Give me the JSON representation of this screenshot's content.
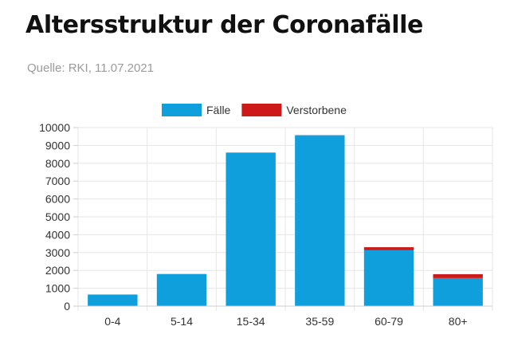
{
  "title": "Altersstruktur der Coronafälle",
  "source": "Quelle: RKI, 11.07.2021",
  "chart_data": {
    "type": "bar",
    "stacked": true,
    "categories": [
      "0-4",
      "5-14",
      "15-34",
      "35-59",
      "60-79",
      "80+"
    ],
    "series": [
      {
        "name": "Fälle",
        "color": "#0f9fdc",
        "values": [
          650,
          1800,
          8600,
          9550,
          3130,
          1570
        ]
      },
      {
        "name": "Verstorbene",
        "color": "#cc1a1a",
        "values": [
          0,
          0,
          0,
          20,
          170,
          220
        ]
      }
    ],
    "ylim": [
      0,
      10000
    ],
    "yticks": [
      0,
      1000,
      2000,
      3000,
      4000,
      5000,
      6000,
      7000,
      8000,
      9000,
      10000
    ],
    "grid": true,
    "legend_position": "top"
  }
}
